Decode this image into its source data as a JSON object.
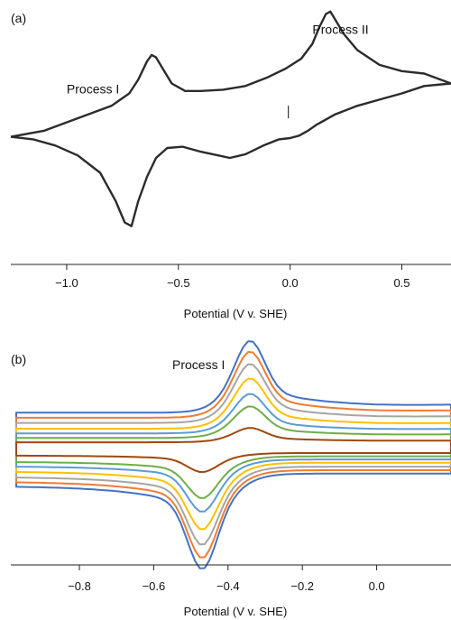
{
  "chart_data": [
    {
      "type": "line",
      "panel_label": "(a)",
      "xlabel": "Potential (V v. SHE)",
      "xlim": [
        -1.25,
        0.72
      ],
      "ylim": [
        -1.0,
        1.0
      ],
      "x_ticks": [
        -1.0,
        -0.5,
        0.0,
        0.5
      ],
      "x_tick_labels": [
        "−1.0",
        "−0.5",
        "0.0",
        "0.5"
      ],
      "annotations": [
        {
          "text": "Process I",
          "x": -1.0,
          "y": 0.32
        },
        {
          "text": "Process II",
          "x": 0.1,
          "y": 0.8
        }
      ],
      "marker": {
        "x": 0.0,
        "y": 0.17
      },
      "color": "#2b2b2b",
      "series": [
        {
          "x": [
            -1.25,
            -1.1,
            -0.95,
            -0.8,
            -0.72,
            -0.68,
            -0.64,
            -0.62,
            -0.6,
            -0.57,
            -0.53,
            -0.47,
            -0.4,
            -0.3,
            -0.2,
            -0.1,
            -0.02,
            0.05,
            0.1,
            0.13,
            0.16,
            0.18,
            0.2,
            0.24,
            0.3,
            0.4,
            0.5,
            0.6,
            0.72,
            0.72,
            0.6,
            0.5,
            0.4,
            0.3,
            0.2,
            0.16,
            0.12,
            0.08,
            0.04,
            0.0,
            -0.05,
            -0.12,
            -0.2,
            -0.27,
            -0.32,
            -0.4,
            -0.48,
            -0.55,
            -0.6,
            -0.64,
            -0.68,
            -0.71,
            -0.74,
            -0.78,
            -0.85,
            -0.95,
            -1.05,
            -1.15,
            -1.25
          ],
          "y": [
            -0.03,
            0.02,
            0.12,
            0.22,
            0.32,
            0.43,
            0.58,
            0.63,
            0.61,
            0.52,
            0.4,
            0.34,
            0.34,
            0.35,
            0.38,
            0.45,
            0.52,
            0.6,
            0.72,
            0.85,
            0.96,
            0.98,
            0.92,
            0.8,
            0.67,
            0.55,
            0.5,
            0.48,
            0.4,
            0.4,
            0.38,
            0.32,
            0.27,
            0.22,
            0.15,
            0.11,
            0.07,
            0.02,
            -0.02,
            -0.04,
            -0.05,
            -0.1,
            -0.17,
            -0.2,
            -0.18,
            -0.15,
            -0.11,
            -0.12,
            -0.2,
            -0.35,
            -0.55,
            -0.75,
            -0.72,
            -0.55,
            -0.32,
            -0.18,
            -0.1,
            -0.05,
            -0.03
          ]
        }
      ]
    },
    {
      "type": "line",
      "panel_label": "(b)",
      "xlabel": "Potential (V v. SHE)",
      "xlim": [
        -0.97,
        0.2
      ],
      "ylim": [
        -1.0,
        1.0
      ],
      "x_ticks": [
        -0.8,
        -0.6,
        -0.4,
        -0.2,
        0.0
      ],
      "x_tick_labels": [
        "−0.8",
        "−0.6",
        "−0.4",
        "−0.2",
        "0.0"
      ],
      "annotations": [
        {
          "text": "Process I",
          "x": -0.55,
          "y": 0.72
        }
      ],
      "series": [
        {
          "color": "#4472c4",
          "a": 1.0,
          "c": 0.5
        },
        {
          "color": "#ed7d31",
          "a": 0.92,
          "c": 0.42
        },
        {
          "color": "#a5a5a5",
          "a": 0.82,
          "c": 0.34
        },
        {
          "color": "#ffc000",
          "a": 0.7,
          "c": 0.25
        },
        {
          "color": "#5b9bd5",
          "a": 0.55,
          "c": 0.18
        },
        {
          "color": "#70ad47",
          "a": 0.44,
          "c": 0.11
        },
        {
          "color": "#9e480e",
          "a": 0.2,
          "c": 0.05
        }
      ]
    }
  ]
}
